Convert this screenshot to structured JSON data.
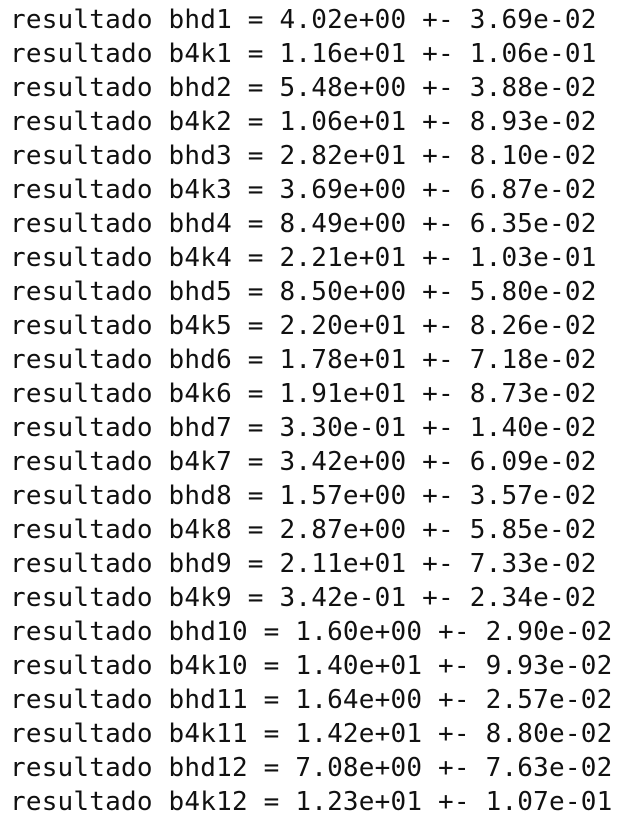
{
  "terminal": {
    "lines": [
      "resultado bhd1 = 4.02e+00 +- 3.69e-02",
      "resultado b4k1 = 1.16e+01 +- 1.06e-01",
      "resultado bhd2 = 5.48e+00 +- 3.88e-02",
      "resultado b4k2 = 1.06e+01 +- 8.93e-02",
      "resultado bhd3 = 2.82e+01 +- 8.10e-02",
      "resultado b4k3 = 3.69e+00 +- 6.87e-02",
      "resultado bhd4 = 8.49e+00 +- 6.35e-02",
      "resultado b4k4 = 2.21e+01 +- 1.03e-01",
      "resultado bhd5 = 8.50e+00 +- 5.80e-02",
      "resultado b4k5 = 2.20e+01 +- 8.26e-02",
      "resultado bhd6 = 1.78e+01 +- 7.18e-02",
      "resultado b4k6 = 1.91e+01 +- 8.73e-02",
      "resultado bhd7 = 3.30e-01 +- 1.40e-02",
      "resultado b4k7 = 3.42e+00 +- 6.09e-02",
      "resultado bhd8 = 1.57e+00 +- 3.57e-02",
      "resultado b4k8 = 2.87e+00 +- 5.85e-02",
      "resultado bhd9 = 2.11e+01 +- 7.33e-02",
      "resultado b4k9 = 3.42e-01 +- 2.34e-02",
      "resultado bhd10 = 1.60e+00 +- 2.90e-02",
      "resultado b4k10 = 1.40e+01 +- 9.93e-02",
      "resultado bhd11 = 1.64e+00 +- 2.57e-02",
      "resultado b4k11 = 1.42e+01 +- 8.80e-02",
      "resultado bhd12 = 7.08e+00 +- 7.63e-02",
      "resultado b4k12 = 1.23e+01 +- 1.07e-01"
    ]
  }
}
